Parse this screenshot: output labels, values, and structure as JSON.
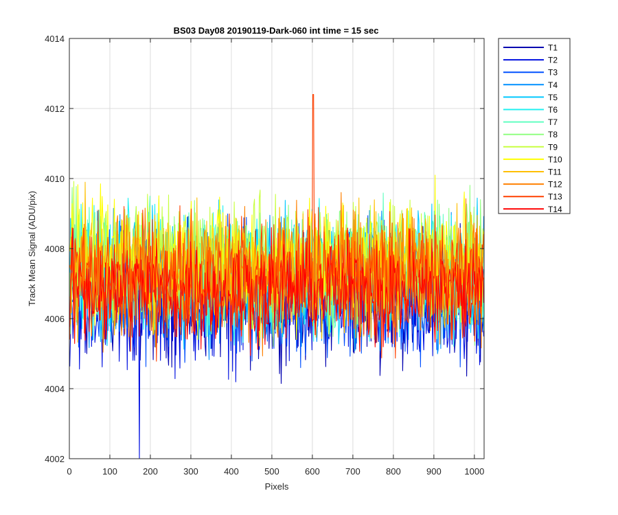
{
  "chart_data": {
    "type": "line",
    "title": "BS03 Day08 20190119-Dark-060 int time = 15 sec",
    "xlabel": "Pixels",
    "ylabel": "Track Mean Signal (ADU/pix)",
    "xlim": [
      0,
      1024
    ],
    "ylim": [
      4002,
      4014
    ],
    "xticks": [
      0,
      100,
      200,
      300,
      400,
      500,
      600,
      700,
      800,
      900,
      1000
    ],
    "yticks": [
      4002,
      4004,
      4006,
      4008,
      4010,
      4012,
      4014
    ],
    "grid": true,
    "legend_position": "outside-top-right",
    "series_summary": {
      "x_start": 1,
      "x_end": 1024,
      "typical_min": 4004.5,
      "typical_max": 4010.5,
      "notable_max": {
        "series": "T13",
        "x": 602,
        "y": 4012.4
      },
      "notable_min": {
        "series": "T2",
        "x": 173,
        "y": 4002.0
      }
    },
    "series": [
      {
        "name": "T1",
        "color": "#0000b0",
        "center": 4006.6,
        "amplitude": 1.5
      },
      {
        "name": "T2",
        "color": "#0010e0",
        "center": 4006.5,
        "amplitude": 1.6
      },
      {
        "name": "T3",
        "color": "#0050ff",
        "center": 4006.8,
        "amplitude": 1.5
      },
      {
        "name": "T4",
        "color": "#0090ff",
        "center": 4007.0,
        "amplitude": 1.5
      },
      {
        "name": "T5",
        "color": "#00c8ff",
        "center": 4007.2,
        "amplitude": 1.5
      },
      {
        "name": "T6",
        "color": "#20f0f0",
        "center": 4007.3,
        "amplitude": 1.5
      },
      {
        "name": "T7",
        "color": "#60ffc0",
        "center": 4007.4,
        "amplitude": 1.5
      },
      {
        "name": "T8",
        "color": "#90ff80",
        "center": 4007.5,
        "amplitude": 1.5
      },
      {
        "name": "T9",
        "color": "#c8ff40",
        "center": 4007.6,
        "amplitude": 1.5
      },
      {
        "name": "T10",
        "color": "#ffff00",
        "center": 4007.6,
        "amplitude": 1.5
      },
      {
        "name": "T11",
        "color": "#ffbf00",
        "center": 4007.4,
        "amplitude": 1.5
      },
      {
        "name": "T12",
        "color": "#ff8000",
        "center": 4007.3,
        "amplitude": 1.5
      },
      {
        "name": "T13",
        "color": "#ff4000",
        "center": 4007.1,
        "amplitude": 1.5
      },
      {
        "name": "T14",
        "color": "#ff0000",
        "center": 4006.8,
        "amplitude": 1.3
      }
    ]
  }
}
